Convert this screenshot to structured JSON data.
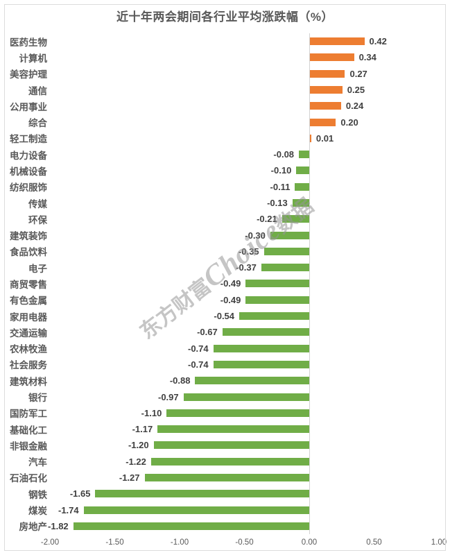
{
  "chart_data": {
    "type": "bar",
    "orientation": "horizontal",
    "title": "近十年两会期间各行业平均涨跌幅（%）",
    "categories": [
      "医药生物",
      "计算机",
      "美容护理",
      "通信",
      "公用事业",
      "综合",
      "轻工制造",
      "电力设备",
      "机械设备",
      "纺织服饰",
      "传媒",
      "环保",
      "建筑装饰",
      "食品饮料",
      "电子",
      "商贸零售",
      "有色金属",
      "家用电器",
      "交通运输",
      "农林牧渔",
      "社会服务",
      "建筑材料",
      "银行",
      "国防军工",
      "基础化工",
      "非银金融",
      "汽车",
      "石油石化",
      "钢铁",
      "煤炭",
      "房地产"
    ],
    "values": [
      0.42,
      0.34,
      0.27,
      0.25,
      0.24,
      0.2,
      0.01,
      -0.08,
      -0.1,
      -0.11,
      -0.13,
      -0.21,
      -0.3,
      -0.35,
      -0.37,
      -0.49,
      -0.49,
      -0.54,
      -0.67,
      -0.74,
      -0.74,
      -0.88,
      -0.97,
      -1.1,
      -1.17,
      -1.2,
      -1.22,
      -1.27,
      -1.65,
      -1.74,
      -1.82
    ],
    "xlabel": "",
    "ylabel": "",
    "xlim": [
      -2.0,
      1.0
    ],
    "x_ticks": [
      "-2.00",
      "-1.50",
      "-1.00",
      "-0.50",
      "0.00",
      "0.50",
      "1.00"
    ],
    "grid": false,
    "legend": "none",
    "positive_color": "#ED7D31",
    "negative_color": "#70AD47",
    "value_label_color": "#404040",
    "category_label_color": "#595959",
    "watermark": {
      "prefix": "东方财富",
      "brand": "Choice",
      "suffix": "数据"
    }
  }
}
